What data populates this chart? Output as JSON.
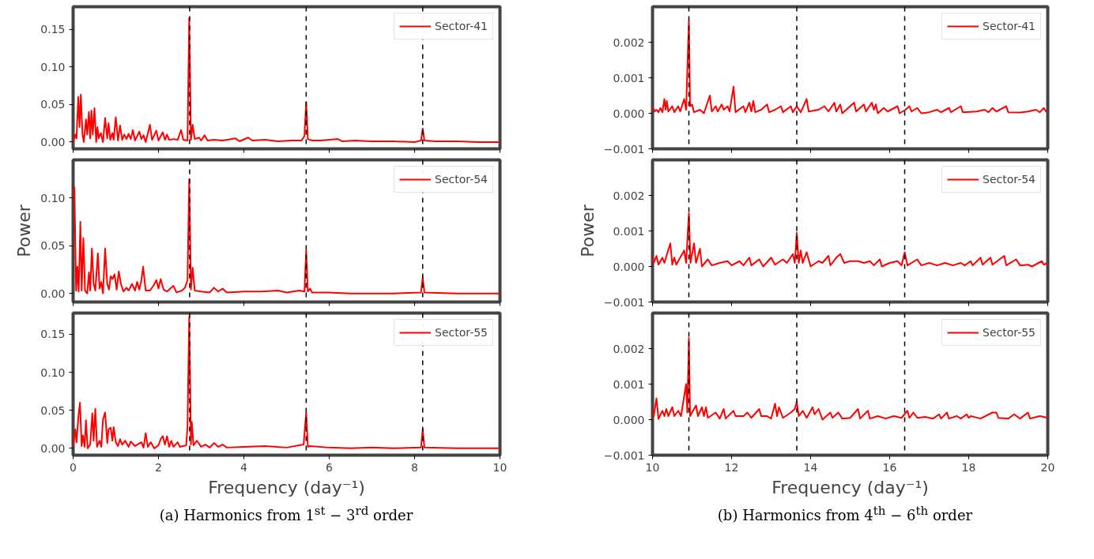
{
  "chart_data": [
    {
      "type": "line",
      "xlim": [
        0,
        10
      ],
      "xticks": [
        0,
        2,
        4,
        6,
        8,
        10
      ],
      "ylim": [
        -0.009,
        0.18
      ],
      "yticks": [
        {
          "value": 0,
          "label": "0.00"
        },
        {
          "value": 0.05,
          "label": "0.05"
        },
        {
          "value": 0.1,
          "label": "0.10"
        },
        {
          "value": 0.15,
          "label": "0.15"
        }
      ],
      "tick_labels": "y",
      "legend": "top right",
      "grid": false,
      "line_style": "solid",
      "ref_lines": [
        {
          "axis": "x",
          "value": 2.73,
          "color": "#000000",
          "line_style": "dashed"
        },
        {
          "axis": "x",
          "value": 5.46,
          "color": "#000000",
          "line_style": "dashed"
        },
        {
          "axis": "x",
          "value": 8.19,
          "color": "#000000",
          "line_style": "dashed"
        }
      ],
      "series": [
        {
          "name": "Sector-41",
          "color": "#ff0000",
          "x": [
            0,
            0.05,
            0.08,
            0.12,
            0.15,
            0.18,
            0.22,
            0.25,
            0.3,
            0.33,
            0.37,
            0.4,
            0.43,
            0.46,
            0.5,
            0.54,
            0.57,
            0.6,
            0.65,
            0.7,
            0.75,
            0.8,
            0.83,
            0.87,
            0.92,
            0.95,
            1.0,
            1.05,
            1.1,
            1.15,
            1.2,
            1.25,
            1.3,
            1.35,
            1.4,
            1.45,
            1.55,
            1.6,
            1.65,
            1.7,
            1.8,
            1.85,
            1.95,
            2.0,
            2.1,
            2.15,
            2.2,
            2.25,
            2.35,
            2.45,
            2.53,
            2.58,
            2.68,
            2.72,
            2.76,
            2.8,
            2.85,
            2.95,
            3.0,
            3.08,
            3.15,
            3.3,
            3.5,
            3.8,
            3.9,
            4.1,
            4.2,
            4.5,
            4.8,
            5.1,
            5.35,
            5.42,
            5.46,
            5.5,
            5.6,
            5.8,
            6.2,
            6.3,
            6.6,
            7.0,
            7.5,
            8.0,
            8.15,
            8.19,
            8.23,
            8.5,
            9.0,
            9.5,
            10
          ],
          "values": [
            0.0,
            0.01,
            0.005,
            0.06,
            0.02,
            0.063,
            0.01,
            0.0,
            0.03,
            0.01,
            0.04,
            0.005,
            0.042,
            0.01,
            0.045,
            0.0,
            0.02,
            0.005,
            0.012,
            0.0,
            0.032,
            0.005,
            0.025,
            0.003,
            0.012,
            0.003,
            0.033,
            0.002,
            0.022,
            0.003,
            0.01,
            0.004,
            0.011,
            0.004,
            0.016,
            0.002,
            0.014,
            0.004,
            0.009,
            0.0,
            0.023,
            0.003,
            0.015,
            0.002,
            0.013,
            0.003,
            0.01,
            0.003,
            0.004,
            0.003,
            0.016,
            0.003,
            0.002,
            0.165,
            0.003,
            0.023,
            0.004,
            0.006,
            0.002,
            0.009,
            0.002,
            0.003,
            0.002,
            0.005,
            0.001,
            0.006,
            0.002,
            0.003,
            0.001,
            0.002,
            0.002,
            0.008,
            0.053,
            0.004,
            0.002,
            0.002,
            0.004,
            0.001,
            0.002,
            0.001,
            0.001,
            0.0,
            0.002,
            0.018,
            0.002,
            0.001,
            0.001,
            0.0,
            0.0
          ]
        }
      ]
    },
    {
      "type": "line",
      "xlim": [
        0,
        10
      ],
      "xticks": [
        0,
        2,
        4,
        6,
        8,
        10
      ],
      "ylim": [
        -0.009,
        0.14
      ],
      "yticks": [
        {
          "value": 0,
          "label": "0.00"
        },
        {
          "value": 0.05,
          "label": "0.05"
        },
        {
          "value": 0.1,
          "label": "0.10"
        }
      ],
      "ylabel": "Power",
      "tick_labels": "y",
      "legend": "top right",
      "grid": false,
      "line_style": "solid",
      "ref_lines": [
        {
          "axis": "x",
          "value": 2.73,
          "color": "#000000",
          "line_style": "dashed"
        },
        {
          "axis": "x",
          "value": 5.46,
          "color": "#000000",
          "line_style": "dashed"
        },
        {
          "axis": "x",
          "value": 8.19,
          "color": "#000000",
          "line_style": "dashed"
        }
      ],
      "series": [
        {
          "name": "Sector-54",
          "color": "#ff0000",
          "x": [
            0,
            0.03,
            0.07,
            0.1,
            0.13,
            0.17,
            0.2,
            0.24,
            0.28,
            0.33,
            0.37,
            0.4,
            0.44,
            0.48,
            0.52,
            0.58,
            0.62,
            0.66,
            0.7,
            0.75,
            0.8,
            0.84,
            0.88,
            0.92,
            0.97,
            1.02,
            1.07,
            1.12,
            1.18,
            1.25,
            1.3,
            1.38,
            1.45,
            1.5,
            1.55,
            1.6,
            1.64,
            1.7,
            1.8,
            1.88,
            1.95,
            2.0,
            2.05,
            2.12,
            2.2,
            2.35,
            2.42,
            2.55,
            2.62,
            2.68,
            2.72,
            2.76,
            2.8,
            2.85,
            3.0,
            3.2,
            3.3,
            3.4,
            3.5,
            3.6,
            4.0,
            4.4,
            4.8,
            5.0,
            5.3,
            5.42,
            5.46,
            5.5,
            5.55,
            5.6,
            6.0,
            6.5,
            7.0,
            7.5,
            8.15,
            8.19,
            8.23,
            9.0,
            10
          ],
          "values": [
            0.1,
            0.111,
            0.003,
            0.028,
            0.002,
            0.075,
            0.003,
            0.058,
            0.003,
            0.0,
            0.022,
            0.003,
            0.047,
            0.01,
            0.003,
            0.042,
            0.005,
            0.012,
            0.0,
            0.047,
            0.01,
            0.004,
            0.018,
            0.015,
            0.02,
            0.004,
            0.023,
            0.01,
            0.002,
            0.006,
            0.003,
            0.01,
            0.003,
            0.012,
            0.004,
            0.014,
            0.028,
            0.003,
            0.003,
            0.008,
            0.014,
            0.005,
            0.015,
            0.004,
            0.002,
            0.008,
            0.001,
            0.003,
            0.006,
            0.014,
            0.12,
            0.004,
            0.027,
            0.003,
            0.002,
            0.001,
            0.006,
            0.002,
            0.005,
            0.001,
            0.002,
            0.002,
            0.003,
            0.001,
            0.003,
            0.002,
            0.045,
            0.002,
            0.005,
            0.001,
            0.001,
            0.0,
            0.0,
            0.0,
            0.001,
            0.017,
            0.001,
            0.0,
            0.0
          ]
        }
      ]
    },
    {
      "type": "line",
      "xlim": [
        0,
        10
      ],
      "xticks": [
        0,
        2,
        4,
        6,
        8,
        10
      ],
      "ylim": [
        -0.009,
        0.178
      ],
      "yticks": [
        {
          "value": 0,
          "label": "0.00"
        },
        {
          "value": 0.05,
          "label": "0.05"
        },
        {
          "value": 0.1,
          "label": "0.10"
        },
        {
          "value": 0.15,
          "label": "0.15"
        }
      ],
      "xlabel": "Frequency (day⁻¹)",
      "legend": "top right",
      "grid": false,
      "line_style": "solid",
      "annotations": [
        "(a) Harmonics from 1$^{st}$ − 3$^{rd}$ order"
      ],
      "ref_lines": [
        {
          "axis": "x",
          "value": 2.73,
          "color": "#000000",
          "line_style": "dashed"
        },
        {
          "axis": "x",
          "value": 5.46,
          "color": "#000000",
          "line_style": "dashed"
        },
        {
          "axis": "x",
          "value": 8.19,
          "color": "#000000",
          "line_style": "dashed"
        }
      ],
      "series": [
        {
          "name": "Sector-55",
          "color": "#ff0000",
          "x": [
            0,
            0.05,
            0.08,
            0.12,
            0.16,
            0.2,
            0.23,
            0.27,
            0.3,
            0.34,
            0.4,
            0.45,
            0.48,
            0.52,
            0.56,
            0.62,
            0.66,
            0.7,
            0.75,
            0.8,
            0.83,
            0.88,
            0.92,
            0.95,
            1.0,
            1.05,
            1.1,
            1.15,
            1.22,
            1.3,
            1.35,
            1.45,
            1.6,
            1.65,
            1.7,
            1.75,
            1.82,
            1.9,
            2.0,
            2.05,
            2.1,
            2.15,
            2.2,
            2.25,
            2.3,
            2.35,
            2.45,
            2.5,
            2.65,
            2.68,
            2.72,
            2.76,
            2.78,
            2.82,
            2.9,
            3.0,
            3.1,
            3.2,
            3.3,
            3.4,
            3.5,
            3.6,
            4.0,
            4.5,
            5.0,
            5.4,
            5.46,
            5.5,
            5.55,
            6.0,
            6.5,
            7.0,
            7.5,
            8.15,
            8.19,
            8.23,
            9.0,
            10
          ],
          "values": [
            0.002,
            0.025,
            0.008,
            0.04,
            0.06,
            0.003,
            0.017,
            0.002,
            0.037,
            0.0,
            0.005,
            0.046,
            0.01,
            0.052,
            0.002,
            0.01,
            0.002,
            0.038,
            0.047,
            0.007,
            0.025,
            0.027,
            0.01,
            0.028,
            0.008,
            0.003,
            0.012,
            0.005,
            0.01,
            0.002,
            0.009,
            0.003,
            0.008,
            0.001,
            0.02,
            0.002,
            0.008,
            0.0,
            0.004,
            0.012,
            0.016,
            0.005,
            0.016,
            0.002,
            0.01,
            0.002,
            0.008,
            0.002,
            0.004,
            0.03,
            0.173,
            0.005,
            0.035,
            0.004,
            0.01,
            0.002,
            0.005,
            0.001,
            0.007,
            0.002,
            0.005,
            0.001,
            0.002,
            0.003,
            0.001,
            0.005,
            0.047,
            0.002,
            0.003,
            0.001,
            0.0,
            0.001,
            0.0,
            0.001,
            0.025,
            0.001,
            0.0,
            0.0
          ]
        }
      ]
    },
    {
      "type": "line",
      "xlim": [
        10,
        20
      ],
      "xticks": [
        10,
        12,
        14,
        16,
        18,
        20
      ],
      "ylim": [
        -0.001,
        0.003
      ],
      "yticks": [
        {
          "value": -0.001,
          "label": "−0.001"
        },
        {
          "value": 0,
          "label": "0.000"
        },
        {
          "value": 0.001,
          "label": "0.001"
        },
        {
          "value": 0.002,
          "label": "0.002"
        }
      ],
      "tick_labels": "y",
      "legend": "top right",
      "grid": false,
      "line_style": "solid",
      "ref_lines": [
        {
          "axis": "x",
          "value": 10.92,
          "color": "#000000",
          "line_style": "dashed"
        },
        {
          "axis": "x",
          "value": 13.65,
          "color": "#000000",
          "line_style": "dashed"
        },
        {
          "axis": "x",
          "value": 16.38,
          "color": "#000000",
          "line_style": "dashed"
        }
      ],
      "series": [
        {
          "name": "Sector-41",
          "color": "#ff0000",
          "x": [
            10.0,
            10.05,
            10.1,
            10.15,
            10.2,
            10.25,
            10.3,
            10.33,
            10.36,
            10.4,
            10.5,
            10.55,
            10.65,
            10.7,
            10.8,
            10.85,
            10.92,
            10.95,
            11.0,
            11.05,
            11.2,
            11.3,
            11.45,
            11.5,
            11.6,
            11.65,
            11.75,
            11.8,
            11.9,
            11.95,
            12.0,
            12.05,
            12.1,
            12.3,
            12.35,
            12.45,
            12.5,
            12.55,
            12.6,
            12.75,
            12.9,
            12.95,
            13.1,
            13.25,
            13.3,
            13.5,
            13.55,
            13.65,
            13.75,
            13.9,
            13.95,
            14.2,
            14.35,
            14.45,
            14.6,
            14.65,
            14.75,
            14.8,
            14.9,
            15.1,
            15.15,
            15.35,
            15.4,
            15.55,
            15.6,
            15.65,
            15.7,
            15.85,
            15.95,
            16.2,
            16.25,
            16.4,
            16.5,
            16.55,
            16.7,
            16.8,
            17.0,
            17.2,
            17.3,
            17.5,
            17.55,
            17.8,
            17.85,
            18.2,
            18.4,
            18.5,
            18.6,
            18.7,
            18.95,
            19.0,
            19.3,
            19.5,
            19.7,
            19.8,
            19.9,
            19.97
          ],
          "values": [
            0.0002,
            5e-05,
            0.0001,
            3e-05,
            0.00015,
            3e-05,
            0.0004,
            0.0001,
            0.00035,
            5e-05,
            0.0002,
            3e-05,
            0.0002,
            5e-05,
            0.0004,
            0.0001,
            0.0026,
            0.0002,
            0.00025,
            3e-05,
            0.0001,
            0.0,
            0.0005,
            5e-05,
            0.0002,
            5e-05,
            0.00025,
            0.0001,
            0.0002,
            5e-05,
            0.0004,
            0.00075,
            3e-05,
            0.0002,
            3e-05,
            0.0003,
            5e-05,
            0.00035,
            3e-05,
            0.0001,
            0.00025,
            3e-05,
            0.0001,
            0.0002,
            3e-05,
            0.0002,
            3e-05,
            0.0002,
            3e-05,
            0.0004,
            5e-05,
            0.0001,
            0.0002,
            5e-05,
            0.0003,
            5e-05,
            0.00025,
            0.0,
            0.0001,
            0.0003,
            5e-05,
            0.00025,
            5e-05,
            0.0003,
            0.0001,
            0.00025,
            0.0,
            0.00015,
            5e-05,
            0.0002,
            0.0,
            0.0001,
            0.0002,
            5e-05,
            0.00015,
            0.0,
            3e-05,
            0.0001,
            3e-05,
            0.00015,
            3e-05,
            0.0002,
            3e-05,
            5e-05,
            0.0001,
            3e-05,
            0.00015,
            5e-05,
            0.0002,
            3e-05,
            2e-05,
            5e-05,
            0.0001,
            3e-05,
            0.00015,
            3e-05
          ]
        }
      ]
    },
    {
      "type": "line",
      "xlim": [
        10,
        20
      ],
      "xticks": [
        10,
        12,
        14,
        16,
        18,
        20
      ],
      "ylim": [
        -0.001,
        0.003
      ],
      "yticks": [
        {
          "value": -0.001,
          "label": "−0.001"
        },
        {
          "value": 0,
          "label": "0.000"
        },
        {
          "value": 0.001,
          "label": "0.001"
        },
        {
          "value": 0.002,
          "label": "0.002"
        }
      ],
      "ylabel": "Power",
      "tick_labels": "y",
      "legend": "top right",
      "grid": false,
      "line_style": "solid",
      "ref_lines": [
        {
          "axis": "x",
          "value": 10.92,
          "color": "#000000",
          "line_style": "dashed"
        },
        {
          "axis": "x",
          "value": 13.65,
          "color": "#000000",
          "line_style": "dashed"
        },
        {
          "axis": "x",
          "value": 16.38,
          "color": "#000000",
          "line_style": "dashed"
        }
      ],
      "series": [
        {
          "name": "Sector-54",
          "color": "#ff0000",
          "x": [
            10.0,
            10.03,
            10.1,
            10.15,
            10.25,
            10.3,
            10.45,
            10.5,
            10.55,
            10.6,
            10.8,
            10.85,
            10.92,
            10.96,
            11.05,
            11.1,
            11.2,
            11.25,
            11.4,
            11.5,
            11.7,
            11.9,
            12.0,
            12.2,
            12.3,
            12.45,
            12.5,
            12.7,
            12.8,
            13.0,
            13.1,
            13.3,
            13.4,
            13.55,
            13.6,
            13.65,
            13.7,
            13.75,
            13.8,
            13.9,
            14.0,
            14.2,
            14.3,
            14.45,
            14.5,
            14.65,
            14.75,
            14.85,
            15.0,
            15.2,
            15.35,
            15.5,
            15.6,
            15.75,
            15.8,
            16.0,
            16.2,
            16.3,
            16.38,
            16.45,
            16.7,
            16.8,
            17.0,
            17.2,
            17.4,
            17.6,
            17.8,
            17.9,
            18.05,
            18.1,
            18.3,
            18.35,
            18.55,
            18.6,
            18.9,
            18.95,
            19.2,
            19.3,
            19.5,
            19.6,
            19.85,
            19.9,
            20.0
          ],
          "values": [
            0.0003,
            0.0001,
            0.0003,
            5e-05,
            0.00025,
            0.0001,
            0.00065,
            5e-05,
            0.00025,
            5e-05,
            0.00045,
            0.0001,
            0.0015,
            0.0001,
            0.00065,
            0.0001,
            0.0005,
            0.0,
            0.0002,
            3e-05,
            0.0001,
            0.00015,
            3e-05,
            0.00015,
            3e-05,
            0.00025,
            3e-05,
            0.0002,
            0.0,
            0.00025,
            5e-05,
            0.0002,
            0.0001,
            0.00035,
            0.0001,
            0.00095,
            0.0001,
            0.00045,
            0.0001,
            0.0004,
            0.0,
            0.00015,
            0.0001,
            0.0003,
            3e-05,
            0.00025,
            0.00035,
            0.0001,
            0.00015,
            0.00015,
            0.0001,
            0.00015,
            3e-05,
            0.0002,
            0.0,
            0.0001,
            0.00015,
            3e-05,
            0.0004,
            3e-05,
            0.0002,
            3e-05,
            0.0001,
            3e-05,
            0.0001,
            3e-05,
            0.0001,
            3e-05,
            0.00015,
            3e-05,
            0.00025,
            5e-05,
            0.00025,
            5e-05,
            0.0003,
            3e-05,
            0.0002,
            3e-05,
            5e-05,
            0.0,
            0.00015,
            5e-05,
            0.0001
          ]
        }
      ]
    },
    {
      "type": "line",
      "xlim": [
        10,
        20
      ],
      "xticks": [
        10,
        12,
        14,
        16,
        18,
        20
      ],
      "ylim": [
        -0.001,
        0.003
      ],
      "yticks": [
        {
          "value": -0.001,
          "label": "−0.001"
        },
        {
          "value": 0,
          "label": "0.000"
        },
        {
          "value": 0.001,
          "label": "0.001"
        },
        {
          "value": 0.002,
          "label": "0.002"
        }
      ],
      "xlabel": "Frequency (day⁻¹)",
      "legend": "top right",
      "grid": false,
      "line_style": "solid",
      "annotations": [
        "(b) Harmonics from 4$^{th}$ − 6$^{th}$ order"
      ],
      "ref_lines": [
        {
          "axis": "x",
          "value": 10.92,
          "color": "#000000",
          "line_style": "dashed"
        },
        {
          "axis": "x",
          "value": 13.65,
          "color": "#000000",
          "line_style": "dashed"
        },
        {
          "axis": "x",
          "value": 16.38,
          "color": "#000000",
          "line_style": "dashed"
        }
      ],
      "series": [
        {
          "name": "Sector-55",
          "color": "#ff0000",
          "x": [
            10.0,
            10.03,
            10.1,
            10.15,
            10.25,
            10.3,
            10.35,
            10.4,
            10.5,
            10.55,
            10.65,
            10.72,
            10.85,
            10.88,
            10.92,
            10.95,
            11.1,
            11.15,
            11.25,
            11.3,
            11.35,
            11.4,
            11.6,
            11.7,
            11.8,
            11.85,
            12.05,
            12.1,
            12.3,
            12.4,
            12.5,
            12.7,
            12.75,
            12.9,
            13.0,
            13.1,
            13.15,
            13.2,
            13.3,
            13.5,
            13.6,
            13.65,
            13.7,
            13.8,
            13.9,
            14.05,
            14.1,
            14.2,
            14.3,
            14.5,
            14.55,
            14.7,
            14.8,
            15.0,
            15.2,
            15.25,
            15.45,
            15.5,
            15.7,
            15.9,
            16.1,
            16.3,
            16.45,
            16.5,
            16.6,
            16.7,
            16.9,
            17.1,
            17.25,
            17.3,
            17.45,
            17.5,
            17.7,
            17.8,
            17.95,
            18.0,
            18.05,
            18.3,
            18.6,
            18.7,
            18.75,
            19.0,
            19.15,
            19.3,
            19.5,
            19.55,
            19.8,
            20.0
          ],
          "values": [
            0.0003,
            0.0001,
            0.0006,
            2e-05,
            0.00025,
            0.0001,
            0.0003,
            0.0001,
            0.00035,
            0.0001,
            0.00025,
            0.0001,
            0.001,
            0.0002,
            0.0023,
            0.0001,
            0.0004,
            0.0001,
            0.00035,
            0.0001,
            0.00035,
            5e-05,
            0.0002,
            3e-05,
            0.0003,
            3e-05,
            0.00025,
            0.0001,
            0.0001,
            0.0002,
            5e-05,
            0.0003,
            0.0001,
            0.0001,
            3e-05,
            0.00045,
            0.0001,
            0.00035,
            5e-05,
            0.0002,
            0.0003,
            0.0005,
            0.0001,
            0.00025,
            5e-05,
            0.00035,
            0.00015,
            0.0003,
            0.0,
            0.0002,
            5e-05,
            0.0002,
            3e-05,
            5e-05,
            0.0003,
            3e-05,
            0.00025,
            3e-05,
            0.0001,
            3e-05,
            0.0001,
            5e-05,
            0.00025,
            5e-05,
            0.0002,
            5e-05,
            8e-05,
            3e-05,
            0.00015,
            3e-05,
            0.0002,
            3e-05,
            0.0001,
            3e-05,
            0.00015,
            5e-05,
            0.0001,
            3e-05,
            0.0002,
            0.0002,
            5e-05,
            3e-05,
            0.00015,
            3e-05,
            0.0002,
            3e-05,
            0.0001,
            5e-05
          ]
        }
      ]
    }
  ]
}
